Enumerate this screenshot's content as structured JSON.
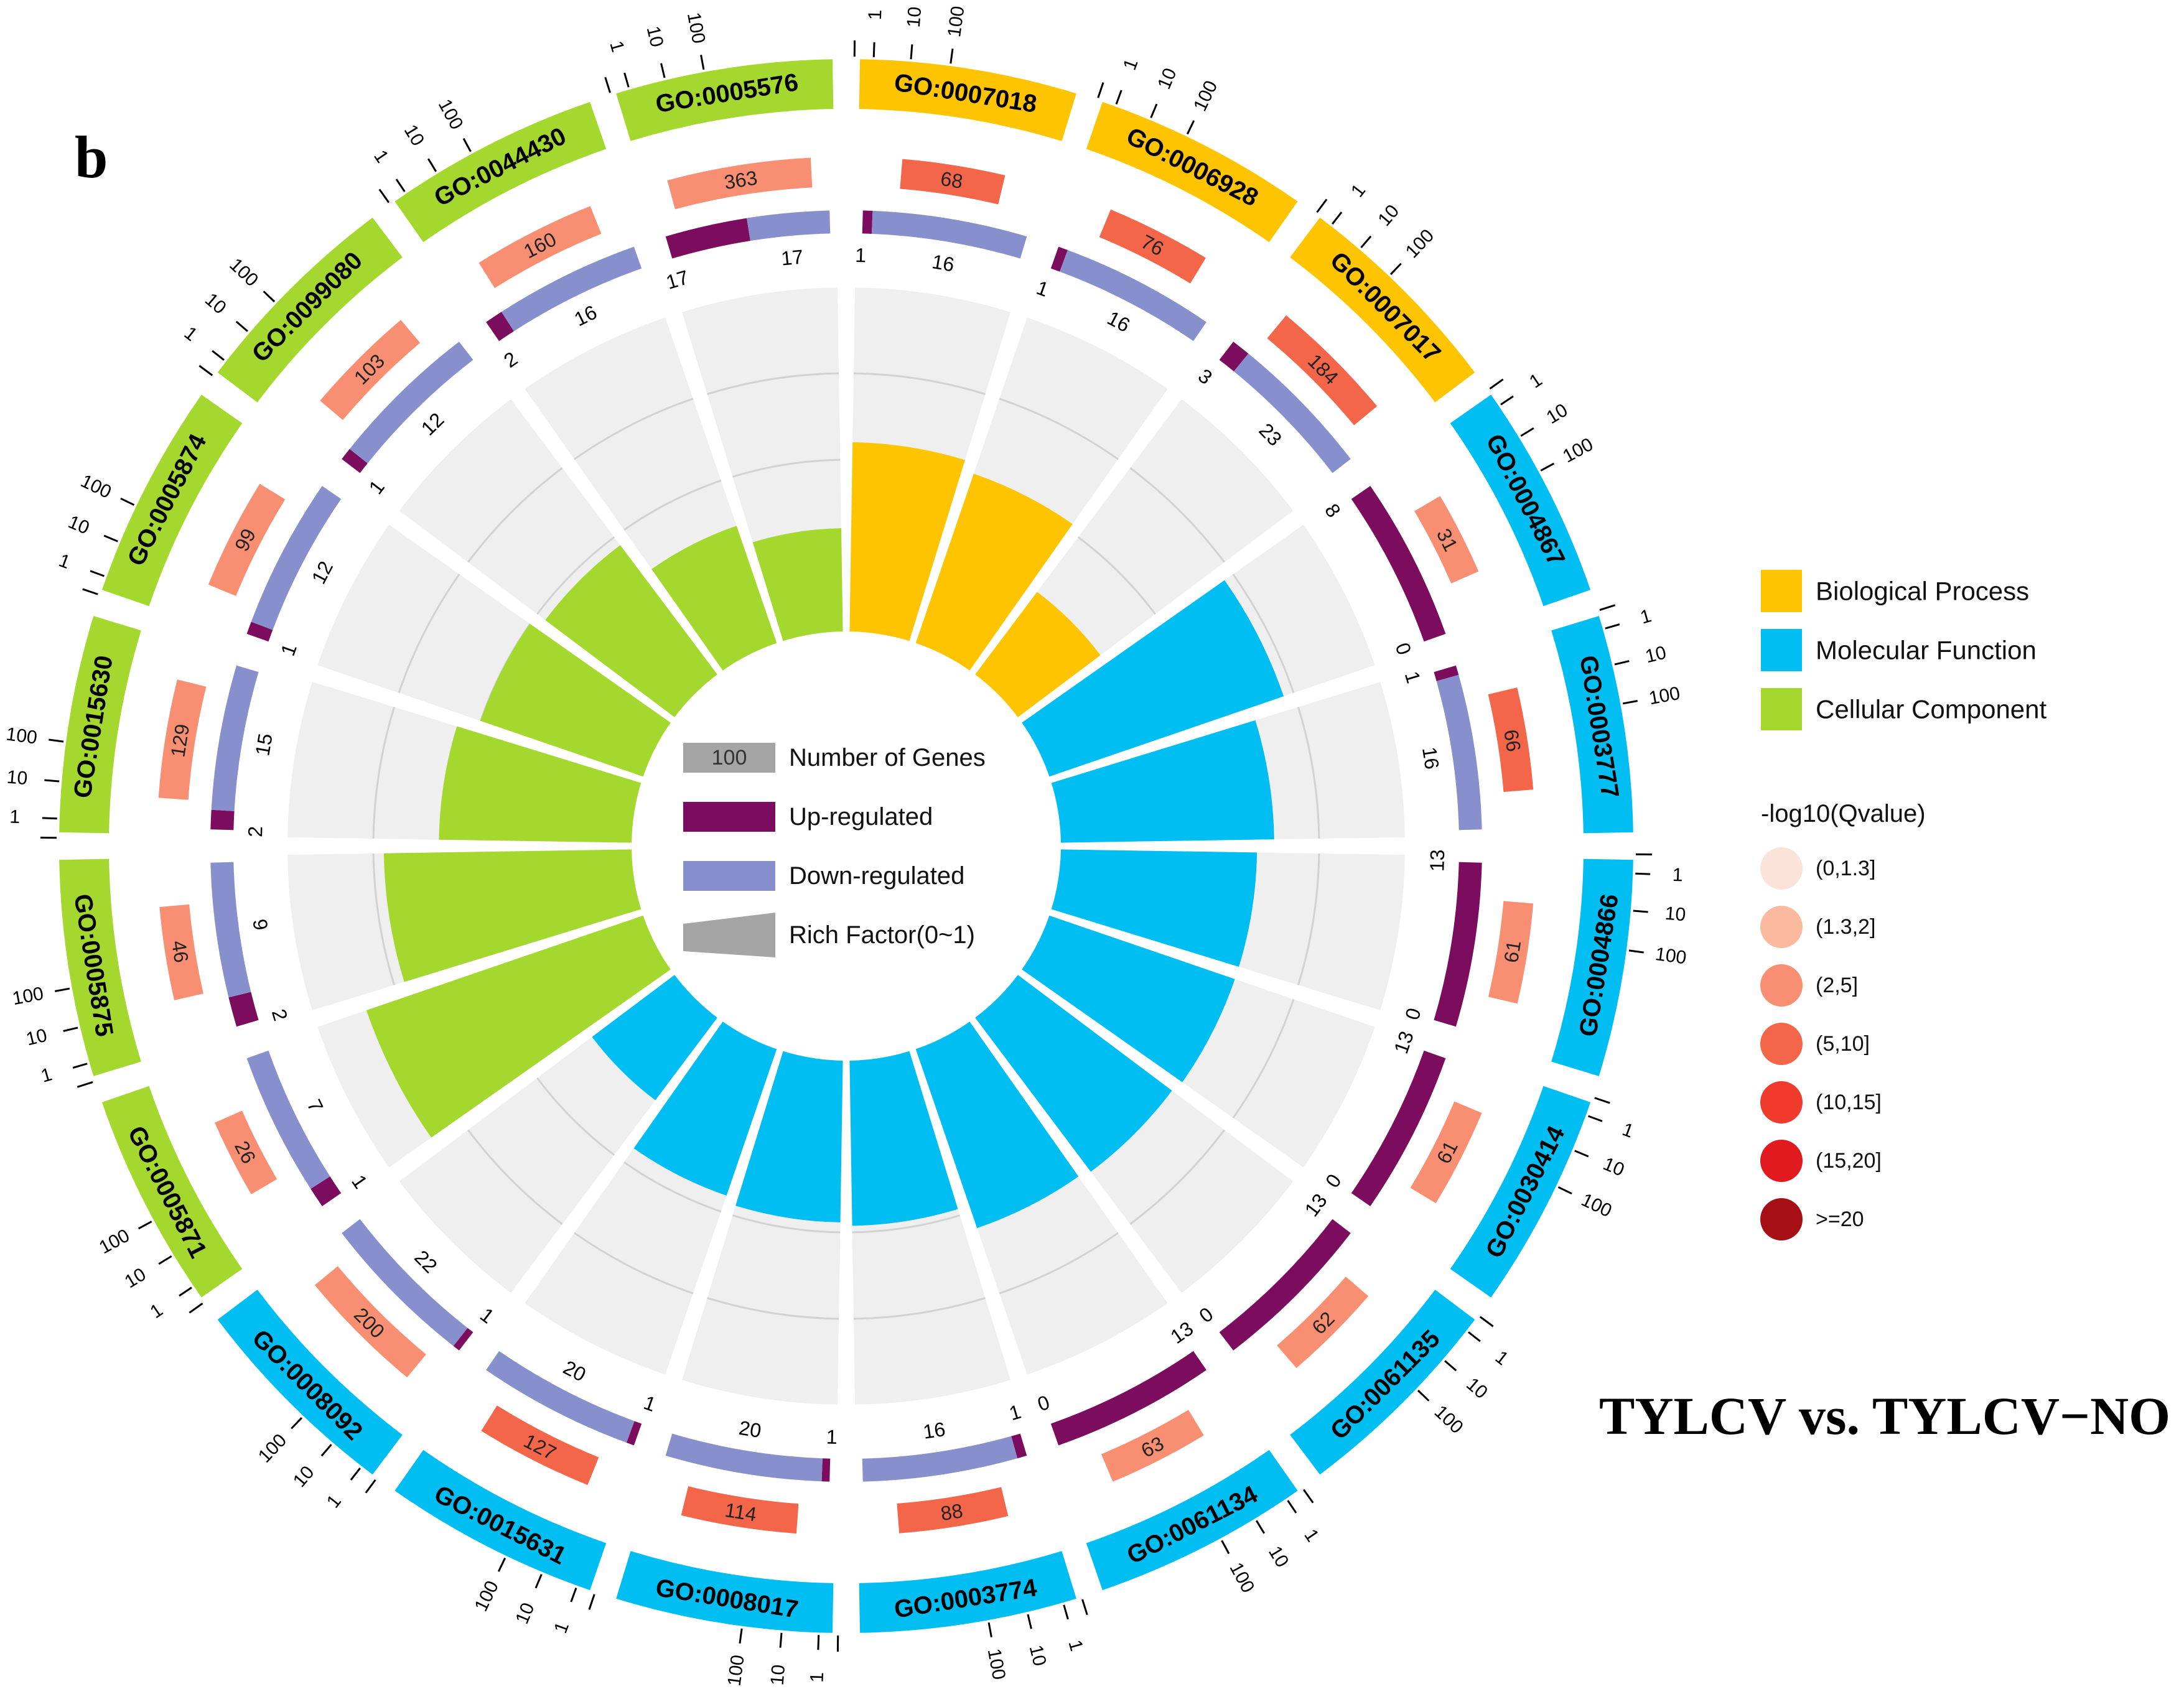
{
  "panel_label": "b",
  "comparison_title": "TYLCV vs. TYLCV−NO",
  "chart_data": {
    "type": "circular-go-enrichment",
    "ring_scale_ticks": [
      "1",
      "10",
      "100"
    ],
    "center_legend": {
      "number_of_genes_sample": "100",
      "number_of_genes_label": "Number of Genes",
      "up_label": "Up-regulated",
      "down_label": "Down-regulated",
      "rich_factor_label": "Rich Factor(0~1)"
    },
    "category_legend": [
      {
        "key": "BP",
        "label": "Biological Process",
        "color": "#FFC400"
      },
      {
        "key": "MF",
        "label": "Molecular Function",
        "color": "#00BEF2"
      },
      {
        "key": "CC",
        "label": "Cellular Component",
        "color": "#A5D82E"
      }
    ],
    "qvalue_legend": {
      "title": "-log10(Qvalue)",
      "bins": [
        {
          "label": "(0,1.3]",
          "color": "#FCE3DA"
        },
        {
          "label": "(1.3,2]",
          "color": "#FBB99F"
        },
        {
          "label": "(2,5]",
          "color": "#F88F72"
        },
        {
          "label": "(5,10]",
          "color": "#F4664A"
        },
        {
          "label": "(10,15]",
          "color": "#EF3A2C"
        },
        {
          "label": "(15,20]",
          "color": "#E01A1F"
        },
        {
          "label": ">=20",
          "color": "#A50F15"
        }
      ]
    },
    "colors": {
      "up": "#7B0C5E",
      "down": "#8790CC",
      "track": "#EFEFEF",
      "grid": "#D2D2D2"
    },
    "terms": [
      {
        "id": "GO:0007018",
        "category": "BP",
        "total": 68,
        "qbin": 3,
        "up": 1,
        "down": 16,
        "rich": 0.55
      },
      {
        "id": "GO:0006928",
        "category": "BP",
        "total": 76,
        "qbin": 3,
        "up": 1,
        "down": 16,
        "rich": 0.52
      },
      {
        "id": "GO:0007017",
        "category": "BP",
        "total": 184,
        "qbin": 3,
        "up": 3,
        "down": 23,
        "rich": 0.3
      },
      {
        "id": "GO:0004867",
        "category": "MF",
        "total": 31,
        "qbin": 2,
        "up": 8,
        "down": 0,
        "rich": 0.72
      },
      {
        "id": "GO:0003777",
        "category": "MF",
        "total": 66,
        "qbin": 3,
        "up": 1,
        "down": 16,
        "rich": 0.62
      },
      {
        "id": "GO:0004866",
        "category": "MF",
        "total": 61,
        "qbin": 2,
        "up": 13,
        "down": 0,
        "rich": 0.57
      },
      {
        "id": "GO:0030414",
        "category": "MF",
        "total": 61,
        "qbin": 2,
        "up": 13,
        "down": 0,
        "rich": 0.57
      },
      {
        "id": "GO:0061135",
        "category": "MF",
        "total": 62,
        "qbin": 2,
        "up": 13,
        "down": 0,
        "rich": 0.56
      },
      {
        "id": "GO:0061134",
        "category": "MF",
        "total": 63,
        "qbin": 2,
        "up": 13,
        "down": 0,
        "rich": 0.55
      },
      {
        "id": "GO:0003774",
        "category": "MF",
        "total": 88,
        "qbin": 3,
        "up": 1,
        "down": 16,
        "rich": 0.48
      },
      {
        "id": "GO:0008017",
        "category": "MF",
        "total": 114,
        "qbin": 3,
        "up": 1,
        "down": 20,
        "rich": 0.47
      },
      {
        "id": "GO:0015631",
        "category": "MF",
        "total": 127,
        "qbin": 3,
        "up": 1,
        "down": 20,
        "rich": 0.45
      },
      {
        "id": "GO:0008092",
        "category": "MF",
        "total": 200,
        "qbin": 2,
        "up": 1,
        "down": 22,
        "rich": 0.3
      },
      {
        "id": "GO:0005871",
        "category": "CC",
        "total": 26,
        "qbin": 2,
        "up": 1,
        "down": 7,
        "rich": 0.85
      },
      {
        "id": "GO:0005875",
        "category": "CC",
        "total": 46,
        "qbin": 2,
        "up": 2,
        "down": 9,
        "rich": 0.72
      },
      {
        "id": "GO:0015630",
        "category": "CC",
        "total": 129,
        "qbin": 2,
        "up": 2,
        "down": 15,
        "rich": 0.56
      },
      {
        "id": "GO:0005874",
        "category": "CC",
        "total": 99,
        "qbin": 2,
        "up": 1,
        "down": 12,
        "rich": 0.5
      },
      {
        "id": "GO:0099080",
        "category": "CC",
        "total": 103,
        "qbin": 2,
        "up": 1,
        "down": 12,
        "rich": 0.47
      },
      {
        "id": "GO:0044430",
        "category": "CC",
        "total": 160,
        "qbin": 2,
        "up": 2,
        "down": 16,
        "rich": 0.36
      },
      {
        "id": "GO:0005576",
        "category": "CC",
        "total": 363,
        "qbin": 2,
        "up": 17,
        "down": 17,
        "rich": 0.3
      }
    ]
  }
}
